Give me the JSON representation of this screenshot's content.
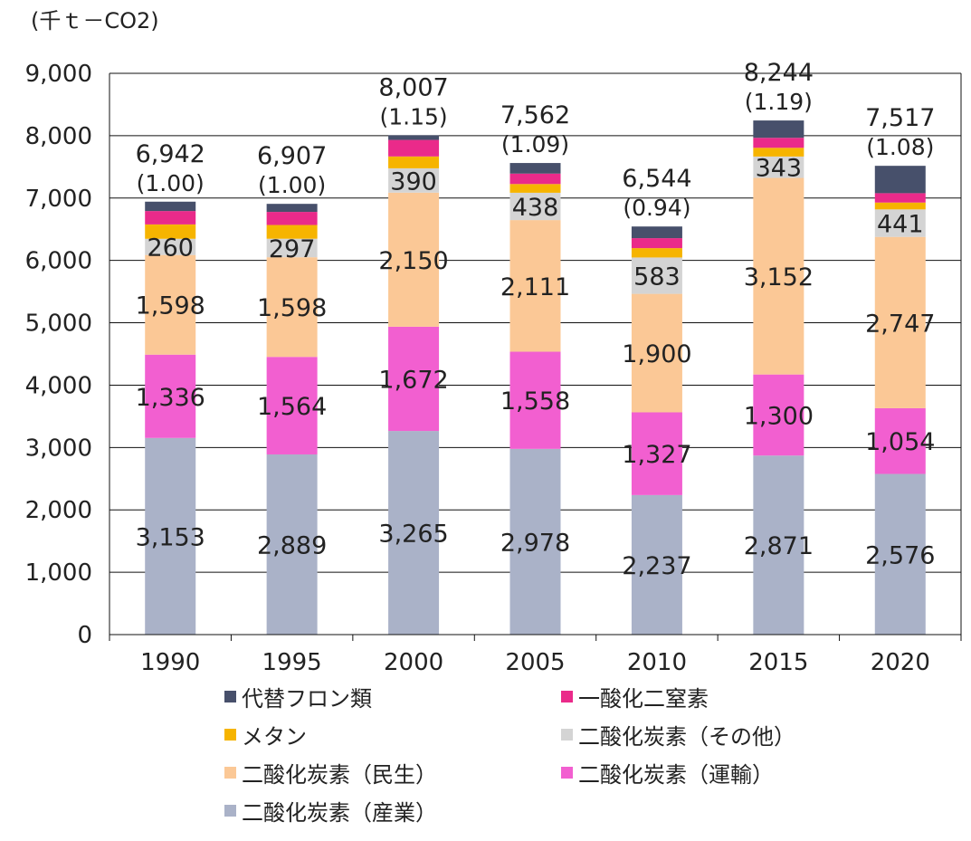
{
  "chart_data": {
    "type": "bar",
    "stacked": true,
    "unit_label": "(千ｔ－CO2)",
    "categories": [
      "1990",
      "1995",
      "2000",
      "2005",
      "2010",
      "2015",
      "2020"
    ],
    "y_ticks": [
      "0",
      "1,000",
      "2,000",
      "3,000",
      "4,000",
      "5,000",
      "6,000",
      "7,000",
      "8,000",
      "9,000"
    ],
    "ylim": [
      0,
      9000
    ],
    "grid": true,
    "legend_position": "bottom",
    "series": [
      {
        "name": "二酸化炭素（産業）",
        "color": "#aab2c8",
        "values": [
          3153,
          2889,
          3265,
          2978,
          2237,
          2871,
          2576
        ],
        "labels": [
          "3,153",
          "2,889",
          "3,265",
          "2,978",
          "2,237",
          "2,871",
          "2,576"
        ]
      },
      {
        "name": "二酸化炭素（運輸）",
        "color": "#f25fd0",
        "values": [
          1336,
          1564,
          1672,
          1558,
          1327,
          1300,
          1054
        ],
        "labels": [
          "1,336",
          "1,564",
          "1,672",
          "1,558",
          "1,327",
          "1,300",
          "1,054"
        ]
      },
      {
        "name": "二酸化炭素（民生）",
        "color": "#fbc896",
        "values": [
          1598,
          1598,
          2150,
          2111,
          1900,
          3152,
          2747
        ],
        "labels": [
          "1,598",
          "1,598",
          "2,150",
          "2,111",
          "1,900",
          "3,152",
          "2,747"
        ]
      },
      {
        "name": "二酸化炭素（その他）",
        "color": "#d4d4d4",
        "values": [
          260,
          297,
          390,
          438,
          583,
          343,
          441
        ],
        "labels": [
          "260",
          "297",
          "390",
          "438",
          "583",
          "343",
          "441"
        ]
      },
      {
        "name": "メタン",
        "color": "#f6b400",
        "values": [
          230,
          220,
          190,
          140,
          150,
          140,
          110
        ],
        "labels": []
      },
      {
        "name": "一酸化二窒素",
        "color": "#ea2a8a",
        "values": [
          215,
          210,
          265,
          167,
          160,
          160,
          150
        ],
        "labels": []
      },
      {
        "name": "代替フロン類",
        "color": "#47506b",
        "values": [
          150,
          129,
          75,
          170,
          187,
          278,
          439
        ],
        "labels": []
      }
    ],
    "totals": [
      "6,942",
      "6,907",
      "8,007",
      "7,562",
      "6,544",
      "8,244",
      "7,517"
    ],
    "ratios": [
      "(1.00)",
      "(1.00)",
      "(1.15)",
      "(1.09)",
      "(0.94)",
      "(1.19)",
      "(1.08)"
    ],
    "total_values": [
      6942,
      6907,
      8007,
      7562,
      6544,
      8244,
      7517
    ],
    "legend": [
      {
        "name": "代替フロン類",
        "color": "#47506b"
      },
      {
        "name": "一酸化二窒素",
        "color": "#ea2a8a"
      },
      {
        "name": "メタン",
        "color": "#f6b400"
      },
      {
        "name": "二酸化炭素（その他）",
        "color": "#d4d4d4"
      },
      {
        "name": "二酸化炭素（民生）",
        "color": "#fbc896"
      },
      {
        "name": "二酸化炭素（運輸）",
        "color": "#f25fd0"
      },
      {
        "name": "二酸化炭素（産業）",
        "color": "#aab2c8"
      }
    ]
  }
}
